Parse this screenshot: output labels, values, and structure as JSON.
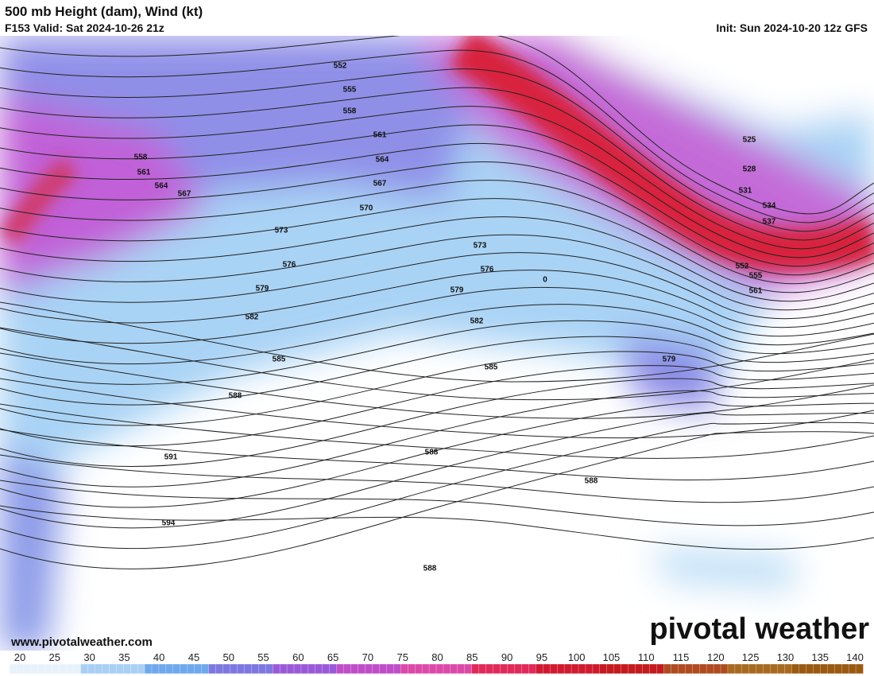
{
  "header": {
    "title": "500 mb Height (dam), Wind (kt)",
    "valid": "F153 Valid: Sat 2024-10-26 21z",
    "init": "Init: Sun 2024-10-20 12z GFS"
  },
  "map": {
    "contour_labels": [
      "552",
      "555",
      "558",
      "561",
      "564",
      "567",
      "570",
      "573",
      "576",
      "579",
      "582",
      "585",
      "588",
      "591",
      "594",
      "558",
      "561",
      "564",
      "567",
      "573",
      "576",
      "579",
      "582",
      "585",
      "588",
      "588",
      "588",
      "579",
      "525",
      "528",
      "531",
      "534",
      "537",
      "552",
      "555",
      "561",
      "0"
    ]
  },
  "colorbar": {
    "ticks": [
      20,
      25,
      30,
      35,
      40,
      45,
      50,
      55,
      60,
      65,
      70,
      75,
      80,
      85,
      90,
      95,
      100,
      105,
      110,
      115,
      120,
      125,
      130,
      135,
      140
    ]
  },
  "footer": {
    "url": "www.pivotalweather.com",
    "brand": "pivotal weather"
  }
}
